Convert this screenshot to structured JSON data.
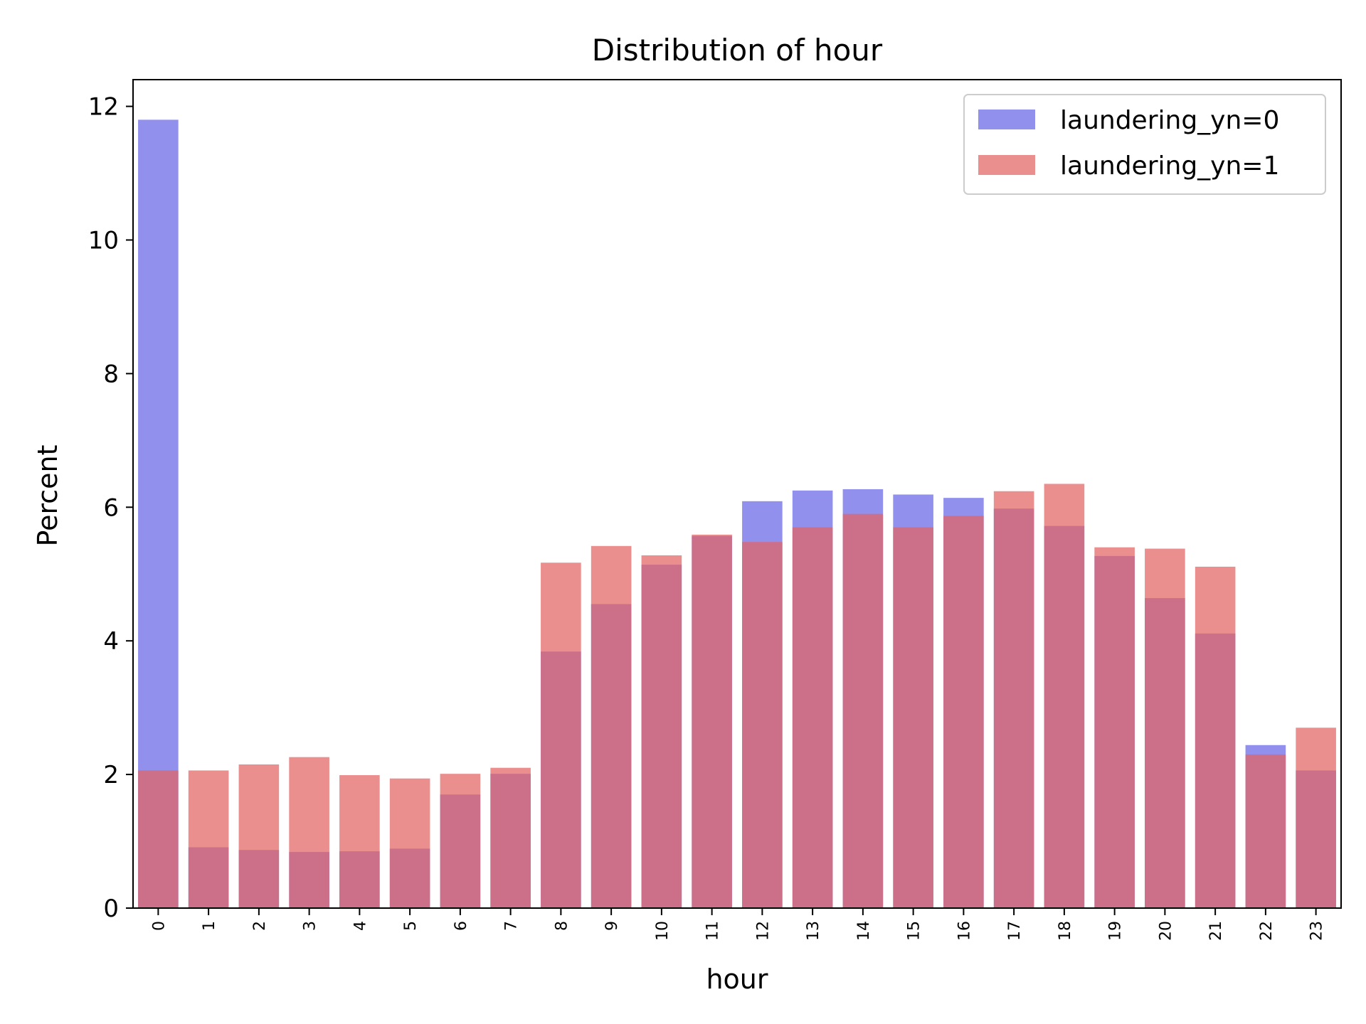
{
  "chart_data": {
    "type": "bar",
    "title": "Distribution of hour",
    "xlabel": "hour",
    "ylabel": "Percent",
    "ylim": [
      0,
      12.4
    ],
    "yticks": [
      0,
      2,
      4,
      6,
      8,
      10,
      12
    ],
    "categories": [
      "0",
      "1",
      "2",
      "3",
      "4",
      "5",
      "6",
      "7",
      "8",
      "9",
      "10",
      "11",
      "12",
      "13",
      "14",
      "15",
      "16",
      "17",
      "18",
      "19",
      "20",
      "21",
      "22",
      "23"
    ],
    "legend_position": "top-right",
    "grid": false,
    "series": [
      {
        "name": "laundering_yn=0",
        "color": "#6666e6",
        "opacity": 0.72,
        "values": [
          11.8,
          0.91,
          0.87,
          0.84,
          0.85,
          0.89,
          1.7,
          2.01,
          3.84,
          4.55,
          5.14,
          5.57,
          6.09,
          6.25,
          6.27,
          6.19,
          6.14,
          5.98,
          5.72,
          5.27,
          4.64,
          4.11,
          2.44,
          2.06
        ]
      },
      {
        "name": "laundering_yn=1",
        "color": "#e36262",
        "opacity": 0.72,
        "values": [
          2.06,
          2.06,
          2.15,
          2.26,
          1.99,
          1.94,
          2.01,
          2.1,
          5.17,
          5.42,
          5.28,
          5.59,
          5.48,
          5.7,
          5.9,
          5.7,
          5.87,
          6.24,
          6.35,
          5.4,
          5.38,
          5.11,
          2.3,
          2.7
        ]
      }
    ]
  }
}
